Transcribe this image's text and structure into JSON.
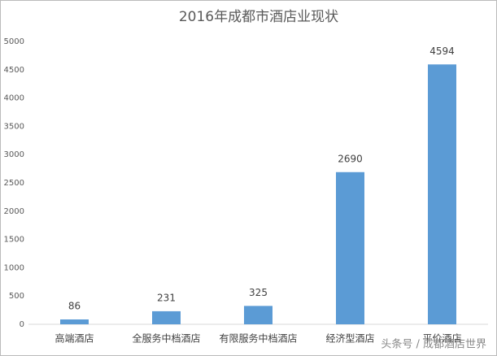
{
  "chart_data": {
    "type": "bar",
    "title": "2016年成都市酒店业现状",
    "categories": [
      "高端酒店",
      "全服务中档酒店",
      "有限服务中档酒店",
      "经济型酒店",
      "平价酒店"
    ],
    "values": [
      86,
      231,
      325,
      2690,
      4594
    ],
    "color": "#5b9bd5",
    "ylim": [
      0,
      5000
    ],
    "yticks": [
      0,
      500,
      1000,
      1500,
      2000,
      2500,
      3000,
      3500,
      4000,
      4500,
      5000
    ],
    "grid": false
  },
  "watermark": "头条号 / 成都酒店世界"
}
